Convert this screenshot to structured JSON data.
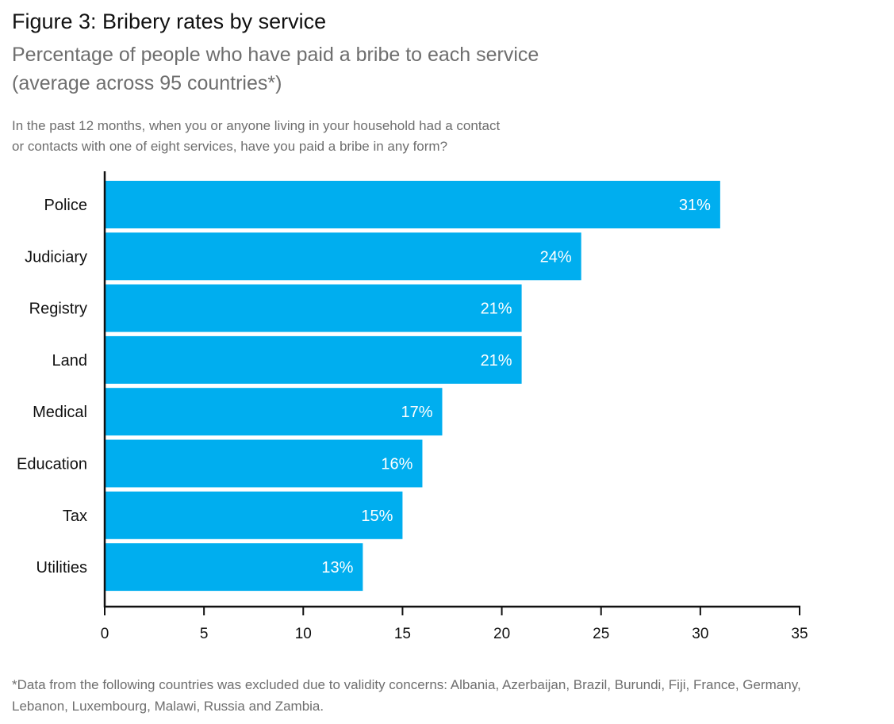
{
  "header": {
    "title": "Figure 3: Bribery rates by service",
    "subtitle_line1": "Percentage of people who have paid a bribe to each service",
    "subtitle_line2": "(average across 95 countries*)",
    "question_line1": "In the past 12 months, when you or anyone living in your household had a contact",
    "question_line2": "or contacts with one of eight services, have you paid a bribe in any form?"
  },
  "footnote": {
    "line1": "*Data from the following countries was excluded due to validity concerns: Albania, Azerbaijan, Brazil, Burundi, Fiji, France, Germany,",
    "line2": "Lebanon, Luxembourg, Malawi, Russia and Zambia."
  },
  "chart_data": {
    "type": "bar",
    "orientation": "horizontal",
    "title": "Figure 3: Bribery rates by service",
    "subtitle": "Percentage of people who have paid a bribe to each service (average across 95 countries*)",
    "categories": [
      "Police",
      "Judiciary",
      "Registry",
      "Land",
      "Medical",
      "Education",
      "Tax",
      "Utilities"
    ],
    "values": [
      31,
      24,
      21,
      21,
      17,
      16,
      15,
      13
    ],
    "data_labels": [
      "31%",
      "24%",
      "21%",
      "21%",
      "17%",
      "16%",
      "15%",
      "13%"
    ],
    "xlim": [
      0,
      35
    ],
    "xticks": [
      0,
      5,
      10,
      15,
      20,
      25,
      30,
      35
    ],
    "xtick_labels": [
      "0",
      "5",
      "10",
      "15",
      "20",
      "25",
      "30",
      "35"
    ],
    "xlabel": "",
    "ylabel": "",
    "grid": false,
    "legend": "none",
    "bar_color": "#00AEEF"
  }
}
